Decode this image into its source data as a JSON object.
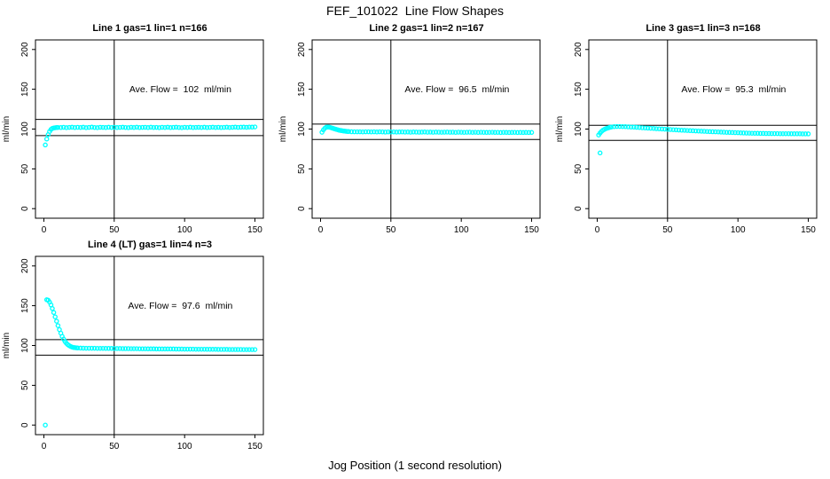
{
  "header": {
    "title": "FEF_101022  Line Flow Shapes"
  },
  "xlabel": "Jog Position (1 second resolution)",
  "colors": {
    "marker": "#00ffff",
    "axis": "#000000",
    "background": "#ffffff"
  },
  "chart_data": [
    {
      "type": "scatter",
      "title": "Line 1 gas=1 lin=1 n=166",
      "n": 166,
      "ave_flow": 102,
      "annotation": {
        "text": "Ave. Flow =  102  ml/min",
        "x": 97,
        "y": 146
      },
      "ylabel": "ml/min",
      "xlim": [
        -6,
        156
      ],
      "ylim": [
        -12,
        212
      ],
      "xticks": [
        0,
        50,
        100,
        150
      ],
      "yticks": [
        0,
        50,
        100,
        150,
        200
      ],
      "vline_x": 50,
      "ref_lines_y": [
        112.2,
        91.8
      ],
      "points": [
        [
          1,
          80
        ],
        [
          2,
          87.5
        ],
        [
          3,
          93
        ],
        [
          4,
          97
        ],
        [
          5,
          99.5
        ],
        [
          6,
          100.8
        ],
        [
          7,
          101.4
        ],
        [
          8,
          101.7
        ],
        [
          9,
          101.9
        ],
        [
          10,
          102
        ],
        [
          12,
          101.9
        ],
        [
          14,
          102.2
        ],
        [
          16,
          101.8
        ],
        [
          18,
          102.1
        ],
        [
          20,
          102.3
        ],
        [
          22,
          101.9
        ],
        [
          24,
          102.2
        ],
        [
          26,
          102
        ],
        [
          28,
          102.3
        ],
        [
          30,
          101.8
        ],
        [
          32,
          102.1
        ],
        [
          34,
          102.4
        ],
        [
          36,
          102
        ],
        [
          38,
          101.8
        ],
        [
          40,
          102.2
        ],
        [
          42,
          102.1
        ],
        [
          44,
          101.9
        ],
        [
          46,
          102.3
        ],
        [
          48,
          102
        ],
        [
          50,
          102.2
        ],
        [
          52,
          101.9
        ],
        [
          54,
          102.1
        ],
        [
          56,
          102.3
        ],
        [
          58,
          102
        ],
        [
          60,
          101.8
        ],
        [
          62,
          102.2
        ],
        [
          64,
          102
        ],
        [
          66,
          102.3
        ],
        [
          68,
          101.9
        ],
        [
          70,
          102.1
        ],
        [
          72,
          102.2
        ],
        [
          74,
          101.9
        ],
        [
          76,
          102.3
        ],
        [
          78,
          102
        ],
        [
          80,
          102.1
        ],
        [
          82,
          101.8
        ],
        [
          84,
          102.2
        ],
        [
          86,
          102
        ],
        [
          88,
          102.3
        ],
        [
          90,
          101.9
        ],
        [
          92,
          102.1
        ],
        [
          94,
          102.3
        ],
        [
          96,
          102
        ],
        [
          98,
          101.8
        ],
        [
          100,
          102.2
        ],
        [
          102,
          102
        ],
        [
          104,
          102.3
        ],
        [
          106,
          101.9
        ],
        [
          108,
          102.1
        ],
        [
          110,
          102.2
        ],
        [
          112,
          102
        ],
        [
          114,
          102.3
        ],
        [
          116,
          101.9
        ],
        [
          118,
          102.1
        ],
        [
          120,
          102.3
        ],
        [
          122,
          102
        ],
        [
          124,
          102.2
        ],
        [
          126,
          101.9
        ],
        [
          128,
          102.1
        ],
        [
          130,
          102.3
        ],
        [
          132,
          102
        ],
        [
          134,
          102.2
        ],
        [
          136,
          102.4
        ],
        [
          138,
          102.1
        ],
        [
          140,
          102.3
        ],
        [
          142,
          102.5
        ],
        [
          144,
          102.2
        ],
        [
          146,
          102.6
        ],
        [
          148,
          102.4
        ],
        [
          150,
          102.7
        ]
      ]
    },
    {
      "type": "scatter",
      "title": "Line 2 gas=1 lin=2 n=167",
      "n": 167,
      "ave_flow": 96.5,
      "annotation": {
        "text": "Ave. Flow =  96.5  ml/min",
        "x": 97,
        "y": 146
      },
      "ylabel": "ml/min",
      "xlim": [
        -6,
        156
      ],
      "ylim": [
        -12,
        212
      ],
      "xticks": [
        0,
        50,
        100,
        150
      ],
      "yticks": [
        0,
        50,
        100,
        150,
        200
      ],
      "vline_x": 50,
      "ref_lines_y": [
        106.2,
        86.9
      ],
      "points": [
        [
          1,
          96
        ],
        [
          2,
          99
        ],
        [
          3,
          101
        ],
        [
          4,
          102.3
        ],
        [
          5,
          102.6
        ],
        [
          6,
          102.4
        ],
        [
          7,
          102
        ],
        [
          8,
          101.4
        ],
        [
          9,
          100.8
        ],
        [
          10,
          100.2
        ],
        [
          11,
          99.7
        ],
        [
          12,
          99.2
        ],
        [
          13,
          98.7
        ],
        [
          14,
          98.3
        ],
        [
          15,
          98
        ],
        [
          16,
          97.7
        ],
        [
          17,
          97.4
        ],
        [
          18,
          97.2
        ],
        [
          19,
          97
        ],
        [
          20,
          96.9
        ],
        [
          22,
          96.7
        ],
        [
          24,
          96.6
        ],
        [
          26,
          96.5
        ],
        [
          28,
          96.6
        ],
        [
          30,
          96.4
        ],
        [
          32,
          96.5
        ],
        [
          34,
          96.6
        ],
        [
          36,
          96.4
        ],
        [
          38,
          96.5
        ],
        [
          40,
          96.3
        ],
        [
          42,
          96.5
        ],
        [
          44,
          96.4
        ],
        [
          46,
          96.2
        ],
        [
          48,
          96.4
        ],
        [
          50,
          96.3
        ],
        [
          52,
          96.4
        ],
        [
          54,
          96.2
        ],
        [
          56,
          96.3
        ],
        [
          58,
          96.4
        ],
        [
          60,
          96.2
        ],
        [
          62,
          96.3
        ],
        [
          64,
          96.1
        ],
        [
          66,
          96.3
        ],
        [
          68,
          96.2
        ],
        [
          70,
          96.1
        ],
        [
          72,
          96.2
        ],
        [
          74,
          96.3
        ],
        [
          76,
          96.1
        ],
        [
          78,
          96.2
        ],
        [
          80,
          96
        ],
        [
          82,
          96.2
        ],
        [
          84,
          96.1
        ],
        [
          86,
          96
        ],
        [
          88,
          96.1
        ],
        [
          90,
          96.2
        ],
        [
          92,
          96
        ],
        [
          94,
          96.1
        ],
        [
          96,
          95.9
        ],
        [
          98,
          96.1
        ],
        [
          100,
          96
        ],
        [
          102,
          95.9
        ],
        [
          104,
          96
        ],
        [
          106,
          96.1
        ],
        [
          108,
          95.9
        ],
        [
          110,
          96
        ],
        [
          112,
          95.8
        ],
        [
          114,
          96
        ],
        [
          116,
          95.9
        ],
        [
          118,
          95.8
        ],
        [
          120,
          95.9
        ],
        [
          122,
          96
        ],
        [
          124,
          95.8
        ],
        [
          126,
          95.9
        ],
        [
          128,
          95.7
        ],
        [
          130,
          95.9
        ],
        [
          132,
          95.8
        ],
        [
          134,
          95.7
        ],
        [
          136,
          95.8
        ],
        [
          138,
          95.9
        ],
        [
          140,
          95.7
        ],
        [
          142,
          95.8
        ],
        [
          144,
          95.6
        ],
        [
          146,
          95.8
        ],
        [
          148,
          95.7
        ],
        [
          150,
          95.8
        ]
      ]
    },
    {
      "type": "scatter",
      "title": "Line 3 gas=1 lin=3 n=168",
      "n": 168,
      "ave_flow": 95.3,
      "annotation": {
        "text": "Ave. Flow =  95.3  ml/min",
        "x": 97,
        "y": 146
      },
      "ylabel": "ml/min",
      "xlim": [
        -6,
        156
      ],
      "ylim": [
        -12,
        212
      ],
      "xticks": [
        0,
        50,
        100,
        150
      ],
      "yticks": [
        0,
        50,
        100,
        150,
        200
      ],
      "vline_x": 50,
      "ref_lines_y": [
        104.8,
        85.8
      ],
      "points": [
        [
          1,
          92.5
        ],
        [
          2,
          70
        ],
        [
          2,
          95
        ],
        [
          3,
          97
        ],
        [
          4,
          98.5
        ],
        [
          5,
          99.5
        ],
        [
          6,
          100.4
        ],
        [
          7,
          101.1
        ],
        [
          8,
          101.7
        ],
        [
          9,
          102.2
        ],
        [
          10,
          102.6
        ],
        [
          12,
          103
        ],
        [
          14,
          103.2
        ],
        [
          16,
          103.2
        ],
        [
          18,
          103.1
        ],
        [
          20,
          103
        ],
        [
          22,
          102.8
        ],
        [
          24,
          102.6
        ],
        [
          26,
          102.4
        ],
        [
          28,
          102.2
        ],
        [
          30,
          102
        ],
        [
          32,
          101.7
        ],
        [
          34,
          101.5
        ],
        [
          36,
          101.2
        ],
        [
          38,
          101
        ],
        [
          40,
          100.8
        ],
        [
          42,
          100.5
        ],
        [
          44,
          100.3
        ],
        [
          46,
          100.1
        ],
        [
          48,
          99.9
        ],
        [
          50,
          99.7
        ],
        [
          52,
          99.4
        ],
        [
          54,
          99.2
        ],
        [
          56,
          99
        ],
        [
          58,
          98.8
        ],
        [
          60,
          98.6
        ],
        [
          62,
          98.4
        ],
        [
          64,
          98.2
        ],
        [
          66,
          98
        ],
        [
          68,
          97.9
        ],
        [
          70,
          97.7
        ],
        [
          72,
          97.5
        ],
        [
          74,
          97.3
        ],
        [
          76,
          97.2
        ],
        [
          78,
          97
        ],
        [
          80,
          96.8
        ],
        [
          82,
          96.7
        ],
        [
          84,
          96.5
        ],
        [
          86,
          96.4
        ],
        [
          88,
          96.2
        ],
        [
          90,
          96.1
        ],
        [
          92,
          95.9
        ],
        [
          94,
          95.8
        ],
        [
          96,
          95.6
        ],
        [
          98,
          95.5
        ],
        [
          100,
          95.4
        ],
        [
          102,
          95.2
        ],
        [
          104,
          95.1
        ],
        [
          106,
          95
        ],
        [
          108,
          94.9
        ],
        [
          110,
          94.8
        ],
        [
          112,
          94.7
        ],
        [
          114,
          94.6
        ],
        [
          116,
          94.5
        ],
        [
          118,
          94.5
        ],
        [
          120,
          94.4
        ],
        [
          122,
          94.4
        ],
        [
          124,
          94.3
        ],
        [
          126,
          94.3
        ],
        [
          128,
          94.3
        ],
        [
          130,
          94.2
        ],
        [
          132,
          94.2
        ],
        [
          134,
          94.2
        ],
        [
          136,
          94.2
        ],
        [
          138,
          94.1
        ],
        [
          140,
          94.1
        ],
        [
          142,
          94.1
        ],
        [
          144,
          94.1
        ],
        [
          146,
          94
        ],
        [
          148,
          94
        ],
        [
          150,
          94
        ]
      ]
    },
    {
      "type": "scatter",
      "title": "Line 4 (LT) gas=1 lin=4 n=3",
      "n": 3,
      "ave_flow": 97.6,
      "annotation": {
        "text": "Ave. Flow =  97.6  ml/min",
        "x": 97,
        "y": 146
      },
      "ylabel": "ml/min",
      "xlim": [
        -6,
        156
      ],
      "ylim": [
        -12,
        212
      ],
      "xticks": [
        0,
        50,
        100,
        150
      ],
      "yticks": [
        0,
        50,
        100,
        150,
        200
      ],
      "vline_x": 50,
      "ref_lines_y": [
        107.4,
        87.8
      ],
      "points": [
        [
          1,
          0
        ],
        [
          2,
          157.5
        ],
        [
          3,
          157
        ],
        [
          4,
          154.5
        ],
        [
          5,
          151
        ],
        [
          6,
          146.5
        ],
        [
          7,
          141.5
        ],
        [
          8,
          136
        ],
        [
          9,
          130.5
        ],
        [
          10,
          125
        ],
        [
          11,
          120
        ],
        [
          12,
          115.5
        ],
        [
          13,
          111.5
        ],
        [
          14,
          108
        ],
        [
          15,
          105
        ],
        [
          16,
          102.8
        ],
        [
          17,
          101
        ],
        [
          18,
          99.8
        ],
        [
          19,
          98.8
        ],
        [
          20,
          98.1
        ],
        [
          21,
          97.6
        ],
        [
          22,
          97.3
        ],
        [
          23,
          97.1
        ],
        [
          24,
          96.9
        ],
        [
          26,
          96.8
        ],
        [
          28,
          96.7
        ],
        [
          30,
          96.6
        ],
        [
          32,
          96.6
        ],
        [
          34,
          96.5
        ],
        [
          36,
          96.5
        ],
        [
          38,
          96.4
        ],
        [
          40,
          96.4
        ],
        [
          42,
          96.4
        ],
        [
          44,
          96.3
        ],
        [
          46,
          96.3
        ],
        [
          48,
          96.3
        ],
        [
          50,
          96.2
        ],
        [
          52,
          96.2
        ],
        [
          54,
          96.2
        ],
        [
          56,
          96.1
        ],
        [
          58,
          96.1
        ],
        [
          60,
          96.1
        ],
        [
          62,
          96
        ],
        [
          64,
          96
        ],
        [
          66,
          96
        ],
        [
          68,
          95.9
        ],
        [
          70,
          95.9
        ],
        [
          72,
          95.9
        ],
        [
          74,
          95.8
        ],
        [
          76,
          95.8
        ],
        [
          78,
          95.8
        ],
        [
          80,
          95.7
        ],
        [
          82,
          95.7
        ],
        [
          84,
          95.7
        ],
        [
          86,
          95.6
        ],
        [
          88,
          95.6
        ],
        [
          90,
          95.6
        ],
        [
          92,
          95.6
        ],
        [
          94,
          95.5
        ],
        [
          96,
          95.5
        ],
        [
          98,
          95.5
        ],
        [
          100,
          95.4
        ],
        [
          102,
          95.4
        ],
        [
          104,
          95.4
        ],
        [
          106,
          95.4
        ],
        [
          108,
          95.3
        ],
        [
          110,
          95.3
        ],
        [
          112,
          95.3
        ],
        [
          114,
          95.3
        ],
        [
          116,
          95.2
        ],
        [
          118,
          95.2
        ],
        [
          120,
          95.2
        ],
        [
          122,
          95.2
        ],
        [
          124,
          95.1
        ],
        [
          126,
          95.1
        ],
        [
          128,
          95.1
        ],
        [
          130,
          95.1
        ],
        [
          132,
          95
        ],
        [
          134,
          95
        ],
        [
          136,
          95
        ],
        [
          138,
          95
        ],
        [
          140,
          95
        ],
        [
          142,
          94.9
        ],
        [
          144,
          94.9
        ],
        [
          146,
          94.9
        ],
        [
          148,
          94.9
        ],
        [
          150,
          94.9
        ]
      ]
    }
  ]
}
